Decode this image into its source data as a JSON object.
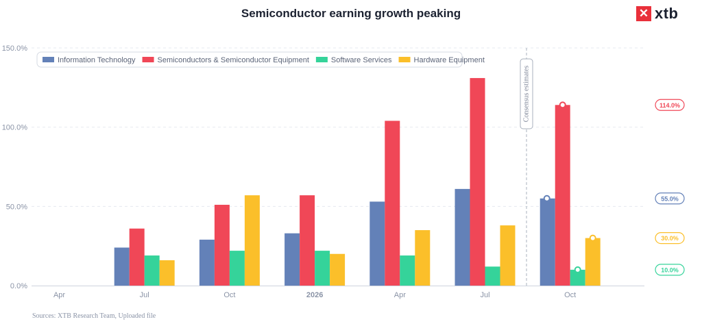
{
  "brand": {
    "name": "xtb",
    "mark": "✕"
  },
  "source": "Sources: XTB Research Team, Uploaded file",
  "colors": {
    "it": "#6381b8",
    "semi": "#f04757",
    "soft": "#35d39a",
    "hw": "#fbbf2a"
  },
  "chart_data": {
    "type": "bar",
    "title": "Semiconductor earning growth peaking",
    "xlabel": "",
    "ylabel": "",
    "ylim": [
      0,
      150
    ],
    "yticks": [
      "0.0%",
      "50.0%",
      "100.0%",
      "150.0%"
    ],
    "grid": true,
    "legend_position": "top-left",
    "x_tick_labels": [
      "Apr",
      "Jul",
      "Oct",
      "2026",
      "Apr",
      "Jul",
      "Oct"
    ],
    "categories": [
      "Apr 2025",
      "Jul 2025",
      "Oct 2025",
      "Jan 2026",
      "Apr 2026",
      "Jul 2026",
      "Oct 2026"
    ],
    "series": [
      {
        "name": "Information Technology",
        "color": "#6381b8",
        "values": [
          null,
          24,
          29,
          33,
          53,
          61,
          55
        ]
      },
      {
        "name": "Semiconductors & Semiconductor Equipment",
        "color": "#f04757",
        "values": [
          null,
          36,
          51,
          57,
          104,
          131,
          114
        ]
      },
      {
        "name": "Software Services",
        "color": "#35d39a",
        "values": [
          null,
          19,
          22,
          22,
          19,
          12,
          10
        ]
      },
      {
        "name": "Hardware Equipment",
        "color": "#fbbf2a",
        "values": [
          null,
          16,
          57,
          20,
          35,
          38,
          30
        ]
      }
    ],
    "annotation": "Consensus estimates",
    "end_labels": [
      {
        "text": "114.0%",
        "value": 114,
        "color": "#f04757"
      },
      {
        "text": "55.0%",
        "value": 55,
        "color": "#6381b8"
      },
      {
        "text": "30.0%",
        "value": 30,
        "color": "#fbbf2a"
      },
      {
        "text": "10.0%",
        "value": 10,
        "color": "#35d39a"
      }
    ]
  }
}
